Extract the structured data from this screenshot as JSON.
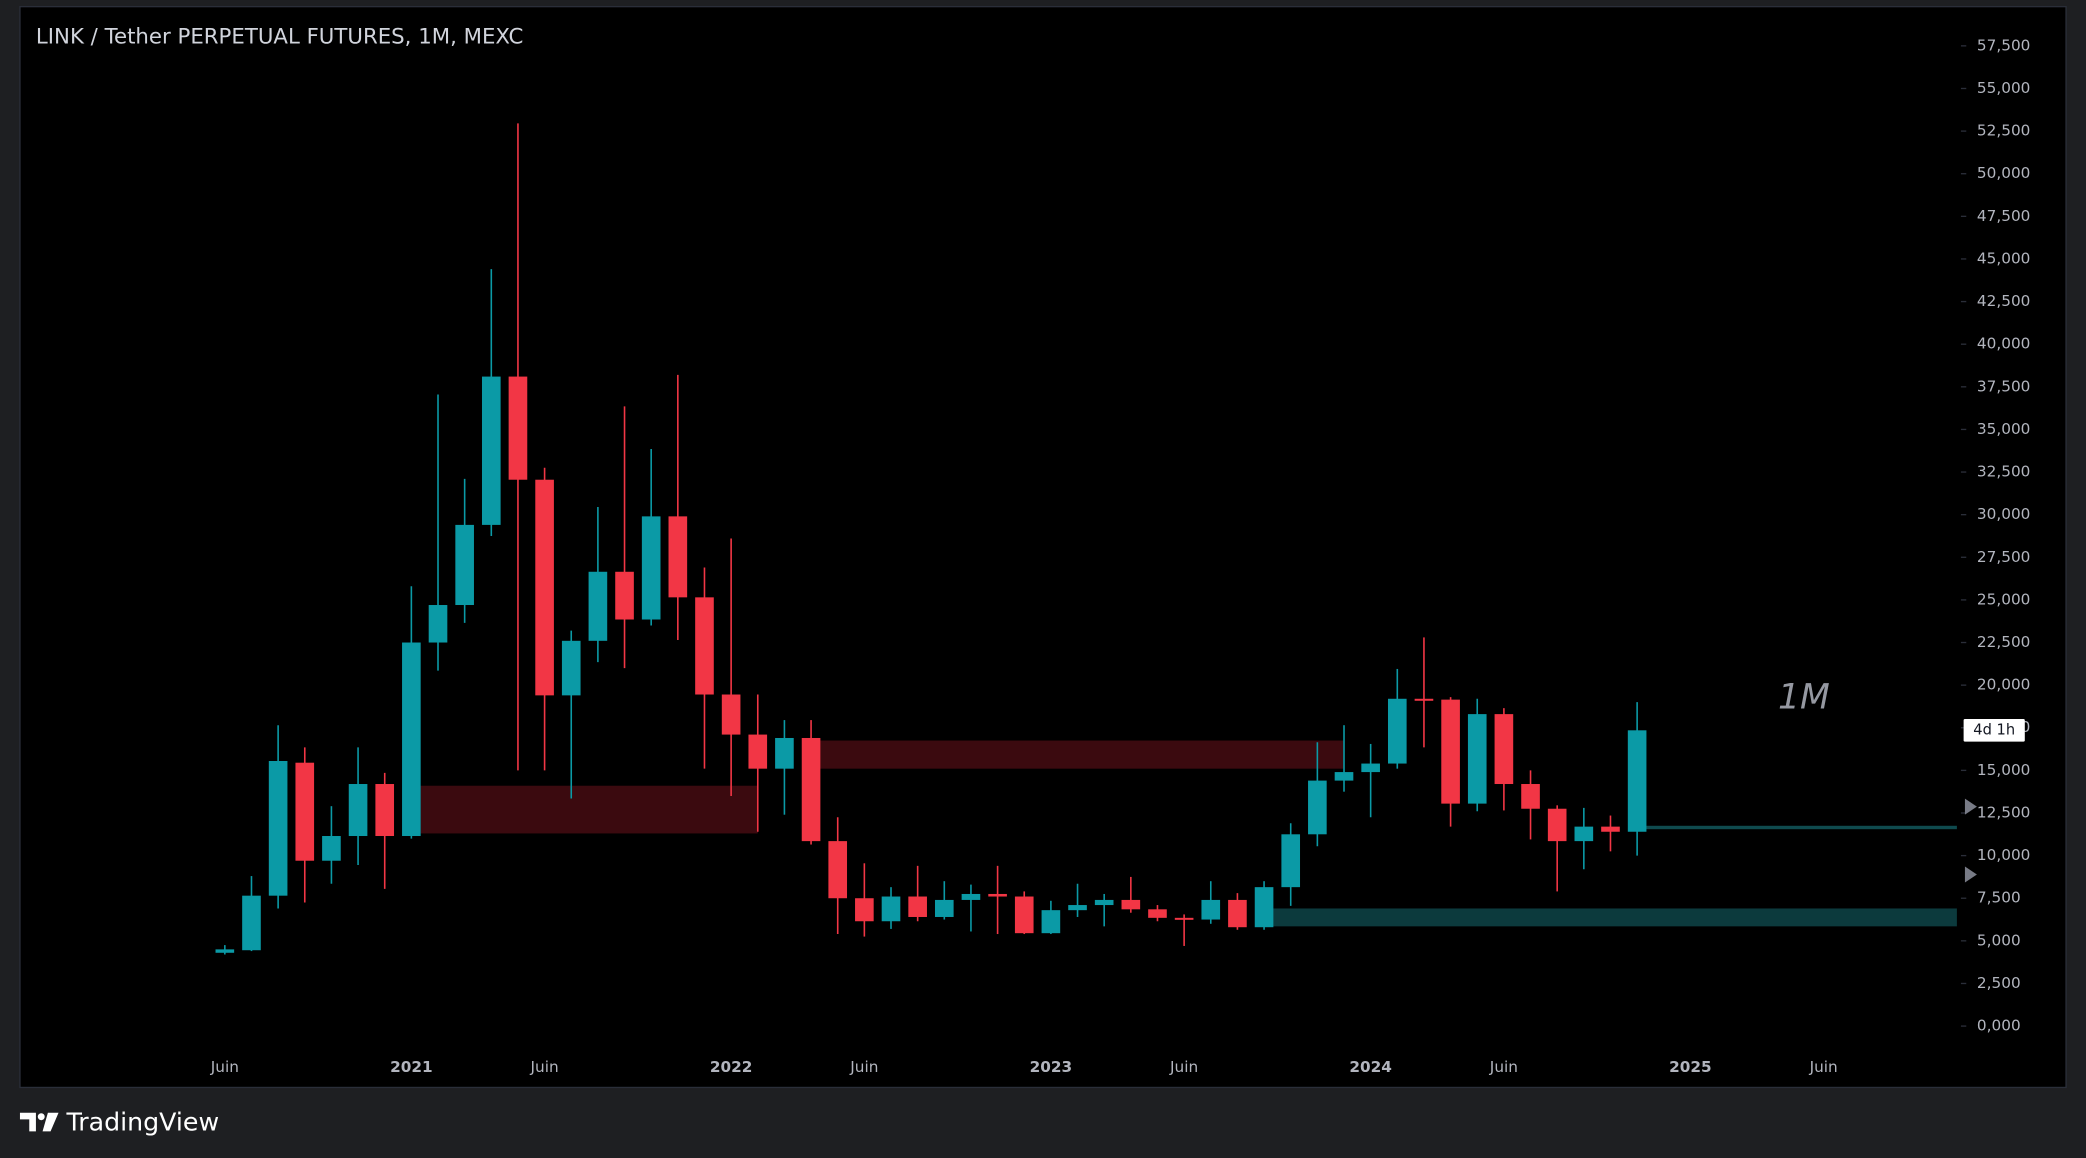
{
  "chart_data": {
    "type": "candlestick",
    "title": "LINK / Tether PERPETUAL FUTURES, 1M, MEXC",
    "annotation": "1M",
    "countdown": "4d 1h",
    "brand": "TradingView",
    "up_color": "#0b9aa6",
    "down_color": "#f23645",
    "categories": [
      "Juin",
      null,
      null,
      null,
      null,
      null,
      null,
      "2021",
      null,
      null,
      null,
      null,
      "Juin",
      null,
      null,
      null,
      null,
      null,
      null,
      "2022",
      null,
      null,
      null,
      null,
      "Juin",
      null,
      null,
      null,
      null,
      null,
      null,
      "2023",
      null,
      null,
      null,
      null,
      "Juin",
      null,
      null,
      null,
      null,
      null,
      null,
      "2024",
      null,
      null,
      null,
      null,
      "Juin",
      null,
      null,
      null,
      null,
      null,
      null,
      "2025",
      null,
      null,
      null,
      null,
      "Juin"
    ],
    "open": [
      4300,
      4450,
      7650,
      15450,
      9700,
      11150,
      14200,
      11150,
      22500,
      24700,
      29400,
      38100,
      32050,
      19400,
      22600,
      26650,
      23850,
      29900,
      25150,
      19450,
      17100,
      15100,
      16900,
      10850,
      7500,
      6150,
      7600,
      6400,
      7400,
      7750,
      7600,
      5450,
      6800,
      7100,
      7400,
      6850,
      6350,
      6250,
      7400,
      5800,
      8150,
      11250,
      14400,
      14900,
      15400,
      19200,
      19150,
      13050,
      18300,
      14200,
      12750,
      10850,
      11700,
      11400,
      null,
      null,
      null,
      null,
      null,
      null,
      null
    ],
    "high": [
      4750,
      8800,
      17650,
      16350,
      12900,
      16350,
      14850,
      25800,
      37050,
      32100,
      44400,
      52950,
      32750,
      23200,
      30450,
      36350,
      33850,
      38200,
      26900,
      28600,
      19450,
      17950,
      17950,
      12250,
      9550,
      8150,
      9400,
      8500,
      8300,
      9400,
      7900,
      7350,
      8350,
      7750,
      8750,
      7100,
      6550,
      8500,
      7800,
      8500,
      11900,
      16650,
      17650,
      16550,
      20950,
      22800,
      19300,
      19200,
      18650,
      15000,
      12950,
      12800,
      12350,
      19000,
      null,
      null,
      null,
      null,
      null,
      null,
      null
    ],
    "low": [
      4200,
      4400,
      6900,
      7250,
      8350,
      9450,
      8050,
      11000,
      20850,
      23650,
      28750,
      15000,
      15000,
      13350,
      21350,
      21000,
      23500,
      22650,
      15100,
      13500,
      11400,
      12400,
      10650,
      5400,
      5250,
      5700,
      6150,
      6250,
      5550,
      5400,
      5400,
      5400,
      6400,
      5850,
      6650,
      6150,
      4700,
      6000,
      5650,
      5650,
      7050,
      10550,
      13750,
      12250,
      15100,
      16350,
      11700,
      12600,
      12650,
      10950,
      7900,
      9200,
      10250,
      10000,
      null,
      null,
      null,
      null,
      null,
      null,
      null
    ],
    "close": [
      4500,
      7650,
      15550,
      9700,
      11150,
      14200,
      11150,
      22500,
      24700,
      29400,
      38100,
      32050,
      19400,
      22600,
      26650,
      23850,
      29900,
      25150,
      19450,
      17100,
      15100,
      16900,
      10850,
      7500,
      6150,
      7600,
      6400,
      7400,
      7750,
      7600,
      5450,
      6800,
      7100,
      7400,
      6850,
      6350,
      6250,
      7400,
      5800,
      8150,
      11250,
      14400,
      14900,
      15400,
      19200,
      19150,
      13050,
      18300,
      14200,
      12750,
      10850,
      11700,
      11400,
      17350,
      null,
      null,
      null,
      null,
      null,
      null,
      null
    ],
    "zones": [
      {
        "start": 7,
        "end": 20,
        "low": 11300,
        "high": 14100,
        "color": "#3b0a0f"
      },
      {
        "start": 22,
        "end": 42,
        "low": 15100,
        "high": 16750,
        "color": "#3b0a0f"
      },
      {
        "start": 39,
        "end": 65,
        "low": 5850,
        "high": 6900,
        "color": "#0c3a3d"
      },
      {
        "start": 53,
        "end": 65,
        "low": 11550,
        "high": 11750,
        "color": "#0f4a4e"
      }
    ],
    "ylim": [
      -3600,
      59800
    ],
    "yticks": [
      {
        "value": 0,
        "label": "0,000"
      },
      {
        "value": 2500,
        "label": "2,500"
      },
      {
        "value": 5000,
        "label": "5,000"
      },
      {
        "value": 7500,
        "label": "7,500"
      },
      {
        "value": 10000,
        "label": "10,000"
      },
      {
        "value": 12500,
        "label": "12,500"
      },
      {
        "value": 15000,
        "label": "15,000"
      },
      {
        "value": 17500,
        "label": "17,500"
      },
      {
        "value": 20000,
        "label": "20,000"
      },
      {
        "value": 22500,
        "label": "22,500"
      },
      {
        "value": 25000,
        "label": "25,000"
      },
      {
        "value": 27500,
        "label": "27,500"
      },
      {
        "value": 30000,
        "label": "30,000"
      },
      {
        "value": 32500,
        "label": "32,500"
      },
      {
        "value": 35000,
        "label": "35,000"
      },
      {
        "value": 37500,
        "label": "37,500"
      },
      {
        "value": 40000,
        "label": "40,000"
      },
      {
        "value": 42500,
        "label": "42,500"
      },
      {
        "value": 45000,
        "label": "45,000"
      },
      {
        "value": 47500,
        "label": "47,500"
      },
      {
        "value": 50000,
        "label": "50,000"
      },
      {
        "value": 52500,
        "label": "52,500"
      },
      {
        "value": 55000,
        "label": "55,000"
      },
      {
        "value": 57500,
        "label": "57,500"
      }
    ]
  }
}
